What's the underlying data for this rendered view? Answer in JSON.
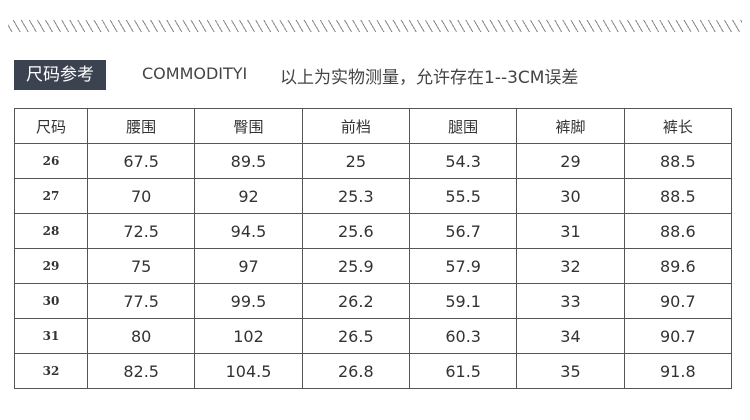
{
  "header": {
    "tag": "尺码参考",
    "brand": "COMMODITYI",
    "note": "以上为实物测量，允许存在1--3CM误差"
  },
  "table": {
    "columns": [
      "尺码",
      "腰围",
      "臀围",
      "前档",
      "腿围",
      "裤脚",
      "裤长"
    ],
    "rows": [
      [
        "26",
        "67.5",
        "89.5",
        "25",
        "54.3",
        "29",
        "88.5"
      ],
      [
        "27",
        "70",
        "92",
        "25.3",
        "55.5",
        "30",
        "88.5"
      ],
      [
        "28",
        "72.5",
        "94.5",
        "25.6",
        "56.7",
        "31",
        "88.6"
      ],
      [
        "29",
        "75",
        "97",
        "25.9",
        "57.9",
        "32",
        "89.6"
      ],
      [
        "30",
        "77.5",
        "99.5",
        "26.2",
        "59.1",
        "33",
        "90.7"
      ],
      [
        "31",
        "80",
        "102",
        "26.5",
        "60.3",
        "34",
        "90.7"
      ],
      [
        "32",
        "82.5",
        "104.5",
        "26.8",
        "61.5",
        "35",
        "91.8"
      ]
    ]
  }
}
